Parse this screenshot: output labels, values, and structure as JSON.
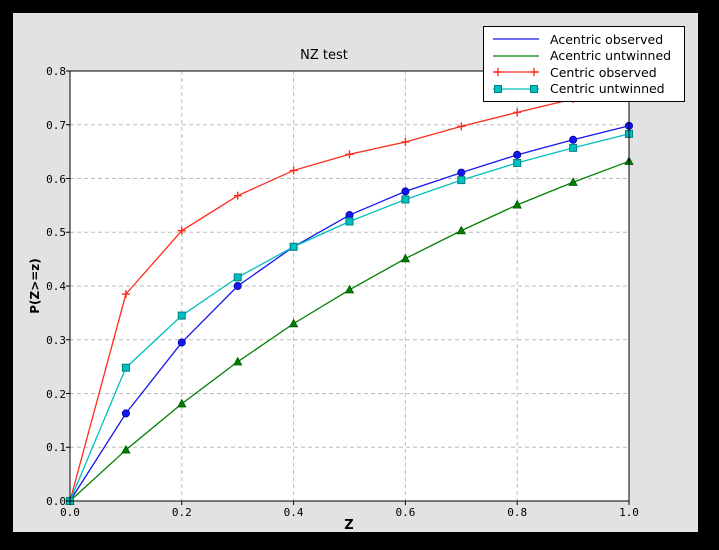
{
  "window": {
    "outer_bg": "#000000",
    "figure_bg": "#e2e2e2",
    "plot_bg": "#ffffff",
    "grid_color": "#bdbdbd",
    "frame_color": "#000000"
  },
  "chart_data": {
    "type": "line",
    "title": "NZ test",
    "xlabel": "Z",
    "ylabel": "P(Z>=z)",
    "xlim": [
      0.0,
      1.0
    ],
    "ylim": [
      0.0,
      0.8
    ],
    "grid": true,
    "legend_position": "upper right",
    "x_ticks": [
      "0.0",
      "0.2",
      "0.4",
      "0.6",
      "0.8",
      "1.0"
    ],
    "y_ticks": [
      "0.0",
      "0.1",
      "0.2",
      "0.3",
      "0.4",
      "0.5",
      "0.6",
      "0.7",
      "0.8"
    ],
    "x": [
      0.0,
      0.1,
      0.2,
      0.3,
      0.4,
      0.5,
      0.6,
      0.7,
      0.8,
      0.9,
      1.0
    ],
    "series": [
      {
        "name": "Acentric observed",
        "color": "#1515f0",
        "marker": "circle",
        "marker_edge": "#0000a0",
        "legend_marker": false,
        "values": [
          0.0,
          0.163,
          0.295,
          0.4,
          0.473,
          0.532,
          0.576,
          0.611,
          0.644,
          0.672,
          0.698
        ]
      },
      {
        "name": "Acentric untwinned",
        "color": "#008000",
        "marker": "triangle",
        "marker_edge": "#005500",
        "legend_marker": false,
        "values": [
          0.0,
          0.095,
          0.181,
          0.259,
          0.33,
          0.393,
          0.451,
          0.503,
          0.551,
          0.593,
          0.632
        ]
      },
      {
        "name": "Centric observed",
        "color": "#ff2a1a",
        "marker": "plus",
        "marker_edge": "#ff2a1a",
        "legend_marker": true,
        "values": [
          0.0,
          0.385,
          0.503,
          0.568,
          0.615,
          0.645,
          0.668,
          0.697,
          0.723,
          0.748,
          0.772
        ]
      },
      {
        "name": "Centric untwinned",
        "color": "#00bfbf",
        "marker": "square",
        "marker_edge": "#008080",
        "legend_marker": true,
        "values": [
          0.0,
          0.248,
          0.345,
          0.416,
          0.473,
          0.52,
          0.561,
          0.597,
          0.629,
          0.657,
          0.683
        ]
      }
    ]
  }
}
